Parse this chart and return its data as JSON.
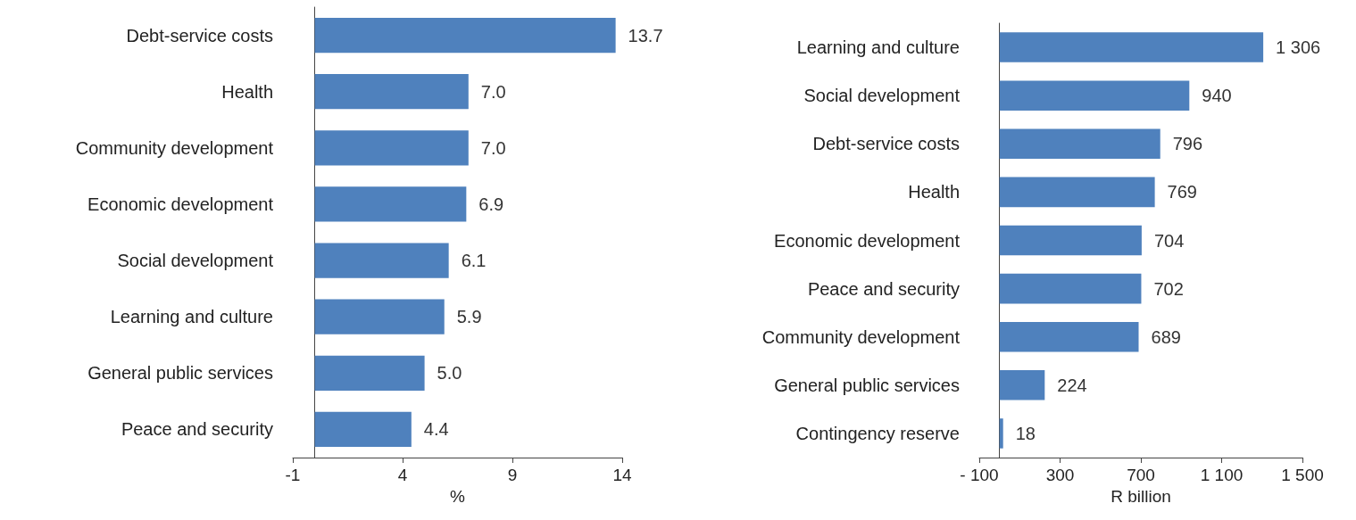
{
  "chart_data": [
    {
      "type": "bar",
      "orientation": "horizontal",
      "xlabel": "%",
      "categories": [
        "Debt-service costs",
        "Health",
        "Community development",
        "Economic development",
        "Social development",
        "Learning and culture",
        "General public services",
        "Peace and security"
      ],
      "values": [
        13.7,
        7.0,
        7.0,
        6.9,
        6.1,
        5.9,
        5.0,
        4.4
      ],
      "value_labels": [
        "13.7",
        "7.0",
        "7.0",
        "6.9",
        "6.1",
        "5.9",
        "5.0",
        "4.4"
      ],
      "color": "#4f81bd",
      "xlim": [
        -1,
        14
      ],
      "xticks": [
        -1,
        4,
        9,
        14
      ],
      "grid": false
    },
    {
      "type": "bar",
      "orientation": "horizontal",
      "xlabel": "R billion",
      "categories": [
        "Learning and culture",
        "Social development",
        "Debt-service costs",
        "Health",
        "Economic development",
        "Peace and security",
        "Community development",
        "General public services",
        "Contingency reserve"
      ],
      "values": [
        1306,
        940,
        796,
        769,
        704,
        702,
        689,
        224,
        18
      ],
      "value_labels": [
        "1 306",
        "940",
        "796",
        "769",
        "704",
        "702",
        "689",
        "224",
        "18"
      ],
      "color": "#4f81bd",
      "xlim": [
        -100,
        1500
      ],
      "xticks": [
        {
          "value": -100,
          "label": "- 100"
        },
        300,
        700,
        {
          "value": 1100,
          "label": "1 100"
        },
        {
          "value": 1500,
          "label": "1 500"
        }
      ],
      "grid": false
    }
  ]
}
